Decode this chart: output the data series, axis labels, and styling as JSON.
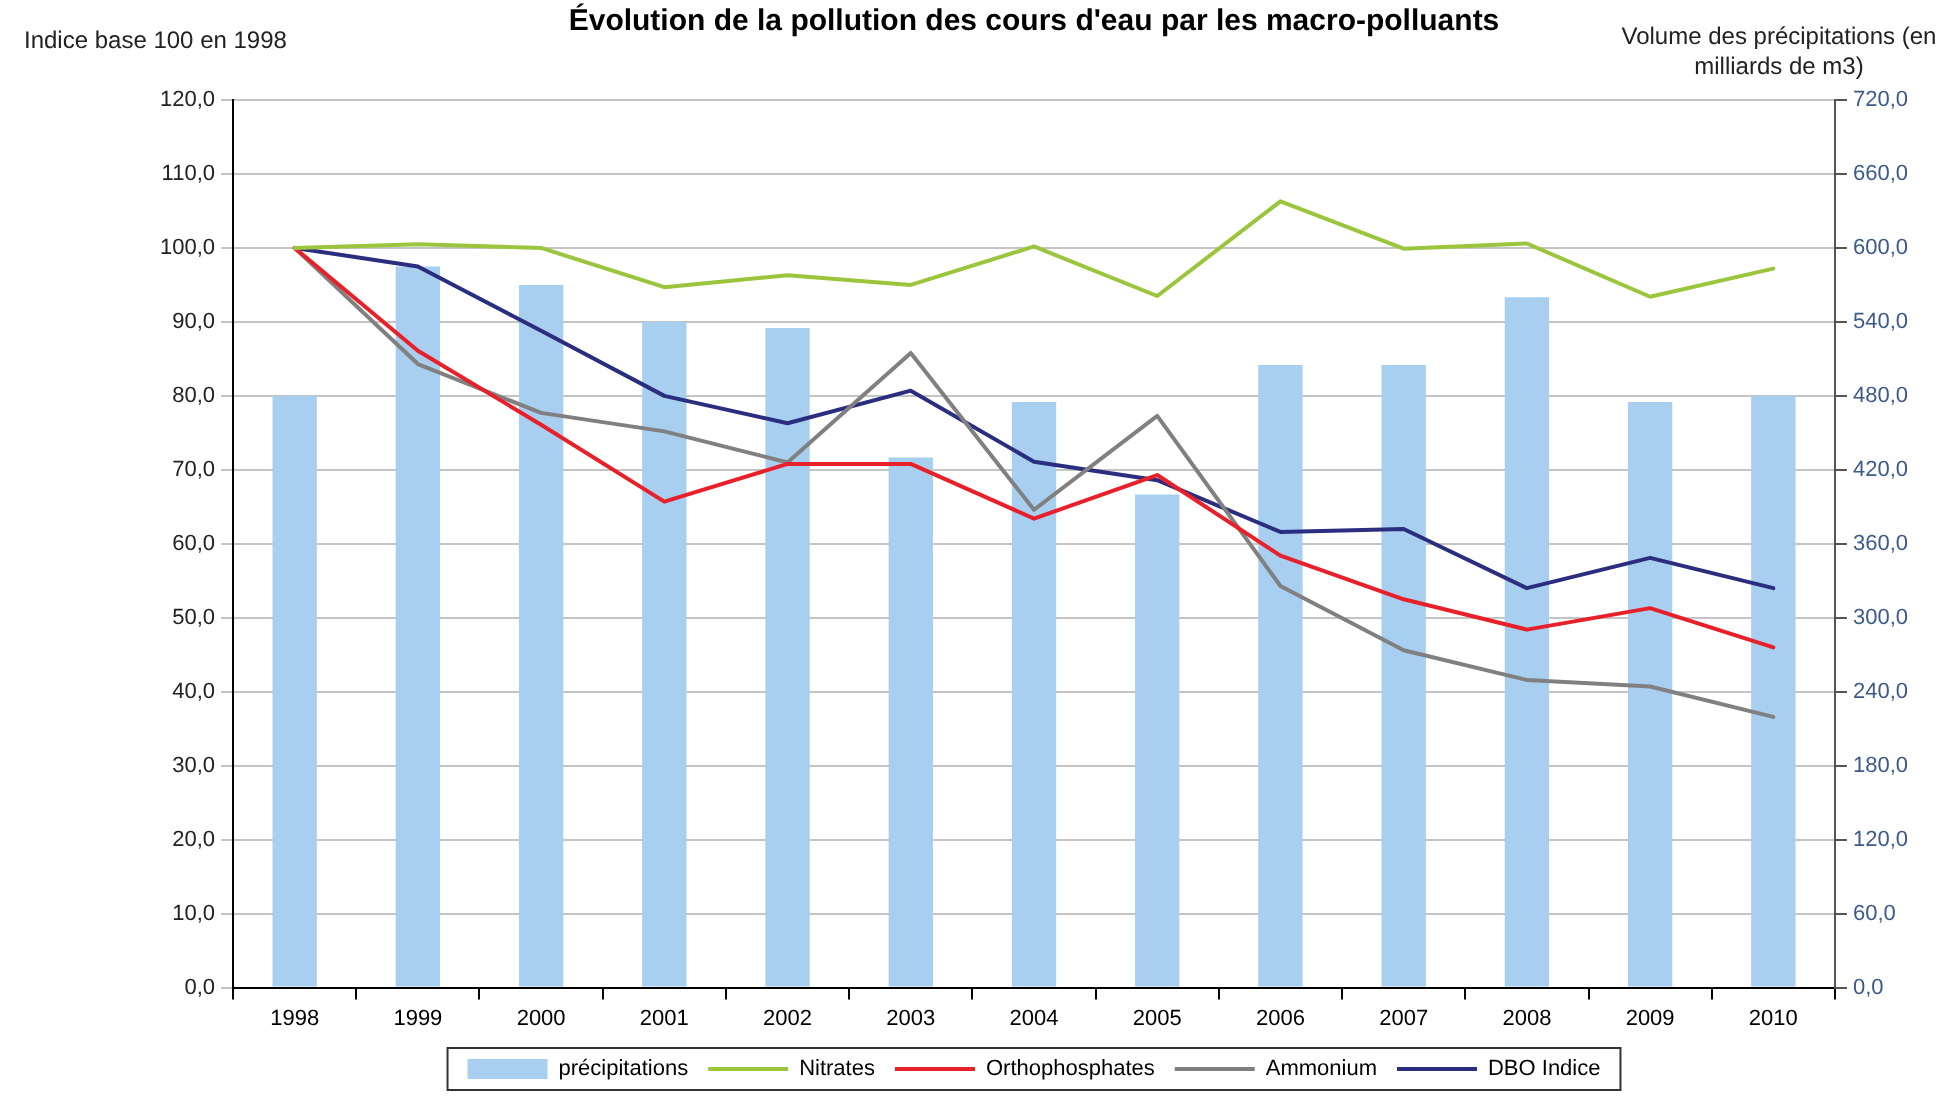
{
  "chart_data": {
    "type": "line",
    "title": "Évolution de la pollution des cours d'eau par les macro-polluants",
    "ylabel": "Indice base 100 en 1998",
    "y2label": "Volume des précipitations (en milliards de m3)",
    "categories": [
      "1998",
      "1999",
      "2000",
      "2001",
      "2002",
      "2003",
      "2004",
      "2005",
      "2006",
      "2007",
      "2008",
      "2009",
      "2010"
    ],
    "series": [
      {
        "name": "précipitations",
        "type": "bar",
        "axis": "y2",
        "color": "#a8cff0",
        "values": [
          480,
          585,
          570,
          540,
          535,
          430,
          475,
          400,
          505,
          505,
          560,
          475,
          480
        ]
      },
      {
        "name": "Nitrates",
        "color": "#9bc53d",
        "values": [
          100,
          100.5,
          100,
          94.7,
          96.3,
          95,
          100.2,
          93.5,
          106.3,
          99.9,
          100.6,
          93.4,
          97.2
        ]
      },
      {
        "name": "Orthophosphates",
        "color": "#e8202a",
        "values": [
          100,
          86.1,
          76.1,
          65.7,
          70.8,
          70.8,
          63.4,
          69.3,
          58.4,
          52.5,
          48.4,
          51.3,
          46
        ]
      },
      {
        "name": "Ammonium",
        "color": "#808080",
        "values": [
          100,
          84.3,
          77.7,
          75.2,
          71,
          85.8,
          64.6,
          77.3,
          54.3,
          45.6,
          41.6,
          40.7,
          36.6
        ]
      },
      {
        "name": "DBO Indice",
        "color": "#2b2d7f",
        "values": [
          100,
          97.5,
          88.8,
          80,
          76.3,
          80.7,
          71.1,
          68.6,
          61.6,
          62,
          54,
          58.1,
          54
        ]
      }
    ],
    "ylim": [
      0,
      120
    ],
    "yticks": [
      {
        "value": 0,
        "label": "0,0"
      },
      {
        "value": 10,
        "label": "10,0"
      },
      {
        "value": 20,
        "label": "20,0"
      },
      {
        "value": 30,
        "label": "30,0"
      },
      {
        "value": 40,
        "label": "40,0"
      },
      {
        "value": 50,
        "label": "50,0"
      },
      {
        "value": 60,
        "label": "60,0"
      },
      {
        "value": 70,
        "label": "70,0"
      },
      {
        "value": 80,
        "label": "80,0"
      },
      {
        "value": 90,
        "label": "90,0"
      },
      {
        "value": 100,
        "label": "100,0"
      },
      {
        "value": 110,
        "label": "110,0"
      },
      {
        "value": 120,
        "label": "120,0"
      }
    ],
    "y2lim": [
      0,
      720
    ],
    "y2ticks": [
      {
        "value": 0,
        "label": "0,0"
      },
      {
        "value": 60,
        "label": "60,0"
      },
      {
        "value": 120,
        "label": "120,0"
      },
      {
        "value": 180,
        "label": "180,0"
      },
      {
        "value": 240,
        "label": "240,0"
      },
      {
        "value": 300,
        "label": "300,0"
      },
      {
        "value": 360,
        "label": "360,0"
      },
      {
        "value": 420,
        "label": "420,0"
      },
      {
        "value": 480,
        "label": "480,0"
      },
      {
        "value": 540,
        "label": "540,0"
      },
      {
        "value": 600,
        "label": "600,0"
      },
      {
        "value": 660,
        "label": "660,0"
      },
      {
        "value": 720,
        "label": "720,0"
      }
    ],
    "grid": "y",
    "legend": "bottom",
    "marker": "none",
    "line_style": "solid"
  }
}
